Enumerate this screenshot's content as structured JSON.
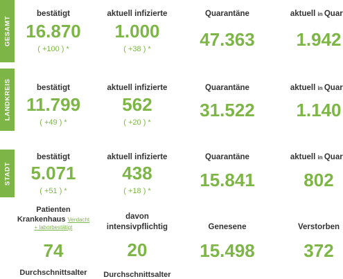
{
  "colors": {
    "accent": "#7db646",
    "text": "#333333"
  },
  "sections": {
    "gesamt": {
      "tag": "GESAMT",
      "bestaetigt_label": "bestätigt",
      "bestaetigt": "16.870",
      "bestaetigt_delta": "( +100 ) *",
      "infizierte_label": "aktuell infizierte",
      "infizierte": "1.000",
      "infizierte_delta": "( +38 ) *",
      "quarantaene_label": "Quarantäne",
      "quarantaene": "47.363",
      "in_quar_label_a": "aktuell ",
      "in_quar_label_b": "in ",
      "in_quar_label_c": "Quara",
      "in_quar": "1.942"
    },
    "landkreis": {
      "tag": "LANDKREIS",
      "bestaetigt_label": "bestätigt",
      "bestaetigt": "11.799",
      "bestaetigt_delta": "( +49 ) *",
      "infizierte_label": "aktuell infizierte",
      "infizierte": "562",
      "infizierte_delta": "( +20 ) *",
      "quarantaene_label": "Quarantäne",
      "quarantaene": "31.522",
      "in_quar_label_a": "aktuell ",
      "in_quar_label_b": "in ",
      "in_quar_label_c": "Quara",
      "in_quar": "1.140"
    },
    "stadt": {
      "tag": "STADT",
      "bestaetigt_label": "bestätigt",
      "bestaetigt": "5.071",
      "bestaetigt_delta": "( +51 ) *",
      "infizierte_label": "aktuell infizierte",
      "infizierte": "438",
      "infizierte_delta": "( +18 ) *",
      "quarantaene_label": "Quarantäne",
      "quarantaene": "15.841",
      "in_quar_label_a": "aktuell ",
      "in_quar_label_b": "in ",
      "in_quar_label_c": "Quara",
      "in_quar": "802"
    }
  },
  "bottom": {
    "patienten_line1": "Patienten",
    "patienten_line2": "Krankenhaus ",
    "patienten_small1": "Verdacht",
    "patienten_small2": "+ laborbestätigt",
    "patienten": "74",
    "intensiv_line1": "davon",
    "intensiv_line2": "intensivpflichtig",
    "intensiv": "20",
    "genesene_label": "Genesene",
    "genesene": "15.498",
    "verstorbene_label": "Verstorben",
    "verstorbene": "372",
    "durchschnitt1": "Durchschnittsalter",
    "durchschnitt2": "Durchschnittsalter"
  }
}
